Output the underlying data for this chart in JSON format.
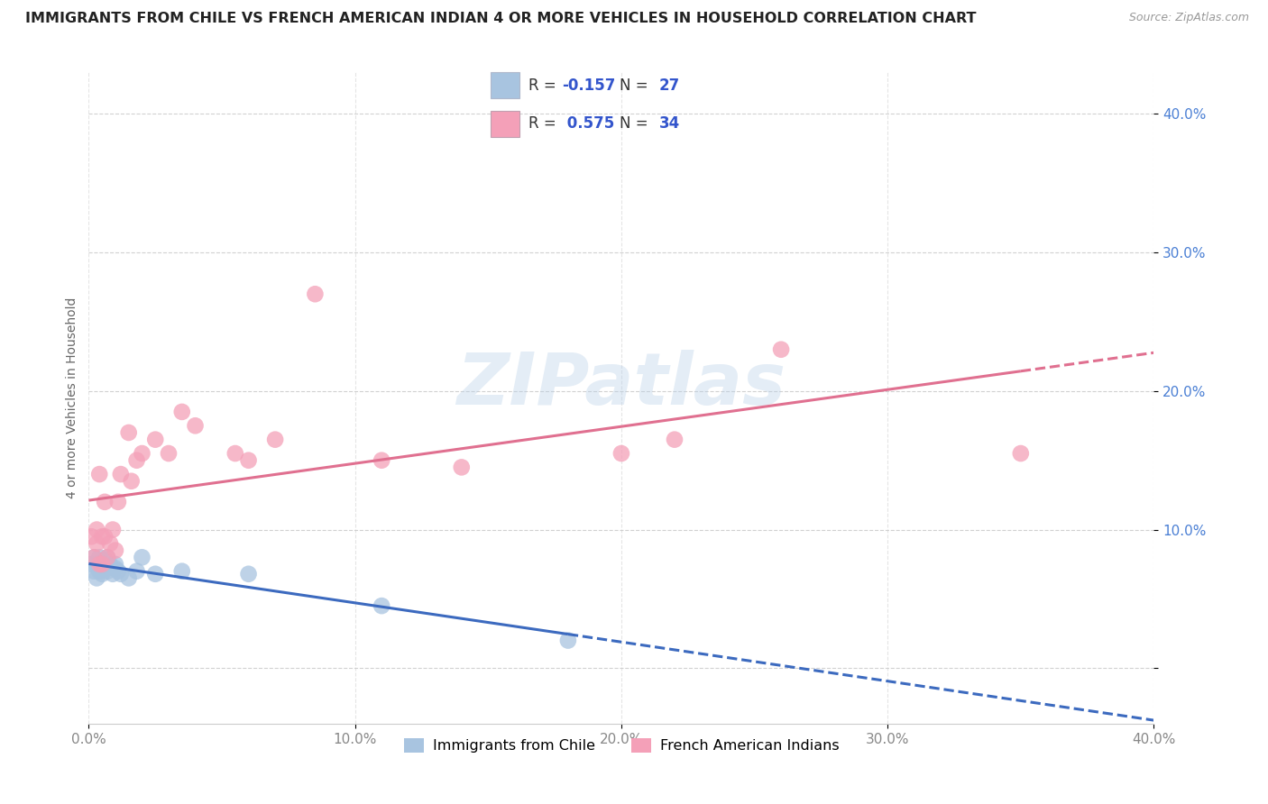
{
  "title": "IMMIGRANTS FROM CHILE VS FRENCH AMERICAN INDIAN 4 OR MORE VEHICLES IN HOUSEHOLD CORRELATION CHART",
  "source_text": "Source: ZipAtlas.com",
  "ylabel": "4 or more Vehicles in Household",
  "xlim": [
    0.0,
    0.4
  ],
  "ylim": [
    -0.04,
    0.43
  ],
  "yticks": [
    0.0,
    0.1,
    0.2,
    0.3,
    0.4
  ],
  "xticks": [
    0.0,
    0.1,
    0.2,
    0.3,
    0.4
  ],
  "xtick_labels": [
    "0.0%",
    "10.0%",
    "20.0%",
    "30.0%",
    "40.0%"
  ],
  "ytick_labels": [
    "",
    "10.0%",
    "20.0%",
    "30.0%",
    "40.0%"
  ],
  "blue_R": -0.157,
  "blue_N": 27,
  "pink_R": 0.575,
  "pink_N": 34,
  "blue_color": "#a8c4e0",
  "pink_color": "#f4a0b8",
  "blue_line_color": "#3c6abf",
  "pink_line_color": "#e07090",
  "blue_label": "Immigrants from Chile",
  "pink_label": "French American Indians",
  "watermark": "ZIPatlas",
  "blue_scatter_x": [
    0.001,
    0.002,
    0.002,
    0.003,
    0.003,
    0.004,
    0.004,
    0.005,
    0.005,
    0.006,
    0.006,
    0.007,
    0.007,
    0.008,
    0.009,
    0.01,
    0.01,
    0.011,
    0.012,
    0.015,
    0.018,
    0.02,
    0.025,
    0.035,
    0.06,
    0.11,
    0.18
  ],
  "blue_scatter_y": [
    0.075,
    0.07,
    0.08,
    0.075,
    0.065,
    0.08,
    0.07,
    0.068,
    0.075,
    0.072,
    0.078,
    0.08,
    0.07,
    0.075,
    0.068,
    0.075,
    0.072,
    0.07,
    0.068,
    0.065,
    0.07,
    0.08,
    0.068,
    0.07,
    0.068,
    0.045,
    0.02
  ],
  "pink_scatter_x": [
    0.001,
    0.002,
    0.003,
    0.003,
    0.004,
    0.004,
    0.005,
    0.005,
    0.006,
    0.006,
    0.007,
    0.008,
    0.009,
    0.01,
    0.011,
    0.012,
    0.015,
    0.016,
    0.018,
    0.02,
    0.025,
    0.03,
    0.035,
    0.04,
    0.055,
    0.06,
    0.07,
    0.085,
    0.11,
    0.14,
    0.2,
    0.22,
    0.26,
    0.35
  ],
  "pink_scatter_y": [
    0.095,
    0.08,
    0.1,
    0.09,
    0.14,
    0.075,
    0.095,
    0.075,
    0.12,
    0.095,
    0.08,
    0.09,
    0.1,
    0.085,
    0.12,
    0.14,
    0.17,
    0.135,
    0.15,
    0.155,
    0.165,
    0.155,
    0.185,
    0.175,
    0.155,
    0.15,
    0.165,
    0.27,
    0.15,
    0.145,
    0.155,
    0.165,
    0.23,
    0.155
  ],
  "legend_color": "#3355cc",
  "title_fontsize": 11.5,
  "axis_fontsize": 10,
  "tick_fontsize": 11
}
